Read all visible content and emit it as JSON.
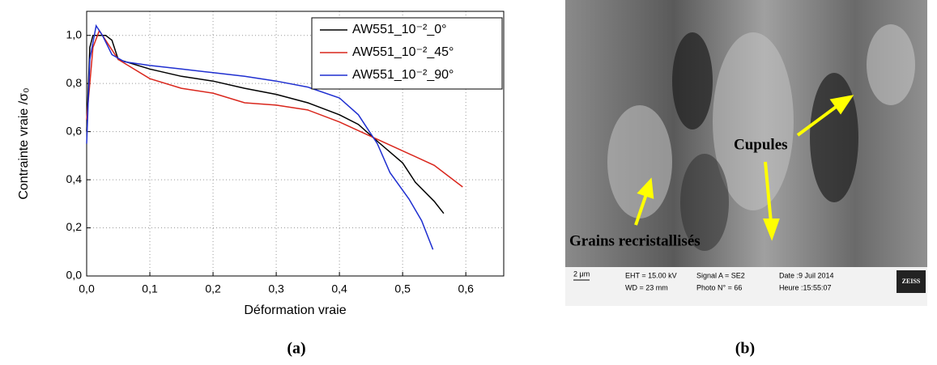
{
  "chart_data": {
    "type": "line",
    "xlabel": "Déformation vraie",
    "ylabel": "Contrainte vraie /σ₀",
    "xlim": [
      0,
      0.66
    ],
    "ylim": [
      0,
      1.1
    ],
    "xticks": [
      {
        "value": 0,
        "label": "0,0"
      },
      {
        "value": 0.1,
        "label": "0,1"
      },
      {
        "value": 0.2,
        "label": "0,2"
      },
      {
        "value": 0.3,
        "label": "0,3"
      },
      {
        "value": 0.4,
        "label": "0,4"
      },
      {
        "value": 0.5,
        "label": "0,5"
      },
      {
        "value": 0.6,
        "label": "0,6"
      }
    ],
    "yticks": [
      {
        "value": 0,
        "label": "0,0"
      },
      {
        "value": 0.2,
        "label": "0,2"
      },
      {
        "value": 0.4,
        "label": "0,4"
      },
      {
        "value": 0.6,
        "label": "0,6"
      },
      {
        "value": 0.8,
        "label": "0,8"
      },
      {
        "value": 1.0,
        "label": "1,0"
      }
    ],
    "grid": true,
    "legend": "top-right",
    "series": [
      {
        "name": "AW551_10⁻²_0°",
        "color": "#000000",
        "x": [
          0,
          0.005,
          0.01,
          0.02,
          0.03,
          0.04,
          0.05,
          0.1,
          0.15,
          0.2,
          0.25,
          0.3,
          0.35,
          0.4,
          0.43,
          0.46,
          0.5,
          0.52,
          0.55,
          0.565
        ],
        "values": [
          0.6,
          0.95,
          1.0,
          1.0,
          1.0,
          0.98,
          0.9,
          0.86,
          0.83,
          0.81,
          0.78,
          0.755,
          0.72,
          0.67,
          0.63,
          0.56,
          0.47,
          0.39,
          0.31,
          0.26
        ]
      },
      {
        "name": "AW551_10⁻²_45°",
        "color": "#d9261c",
        "x": [
          0,
          0.01,
          0.02,
          0.03,
          0.05,
          0.1,
          0.15,
          0.2,
          0.25,
          0.3,
          0.35,
          0.4,
          0.45,
          0.5,
          0.55,
          0.58,
          0.595
        ],
        "values": [
          0.65,
          0.95,
          1.02,
          0.98,
          0.9,
          0.82,
          0.78,
          0.76,
          0.72,
          0.71,
          0.69,
          0.64,
          0.58,
          0.52,
          0.46,
          0.4,
          0.37
        ]
      },
      {
        "name": "AW551_10⁻²_90°",
        "color": "#1f2fd0",
        "x": [
          0,
          0.005,
          0.015,
          0.025,
          0.04,
          0.06,
          0.1,
          0.15,
          0.2,
          0.25,
          0.3,
          0.35,
          0.4,
          0.43,
          0.46,
          0.48,
          0.51,
          0.53,
          0.548
        ],
        "values": [
          0.55,
          0.9,
          1.04,
          1.0,
          0.92,
          0.89,
          0.875,
          0.86,
          0.845,
          0.83,
          0.81,
          0.785,
          0.74,
          0.67,
          0.55,
          0.43,
          0.32,
          0.23,
          0.11
        ]
      }
    ]
  },
  "panel_labels": [
    "(a)",
    "(b)"
  ],
  "sem_image": {
    "annotations": [
      "Cupules",
      "Grains recristallisés"
    ],
    "scale": "2 μm",
    "info": [
      "EHT = 15.00 kV",
      "WD =  23 mm",
      "Signal A = SE2",
      "Photo N° = 66",
      "Date :9 Juil 2014",
      "Heure :15:55:07"
    ],
    "brand": "ZEISS"
  }
}
